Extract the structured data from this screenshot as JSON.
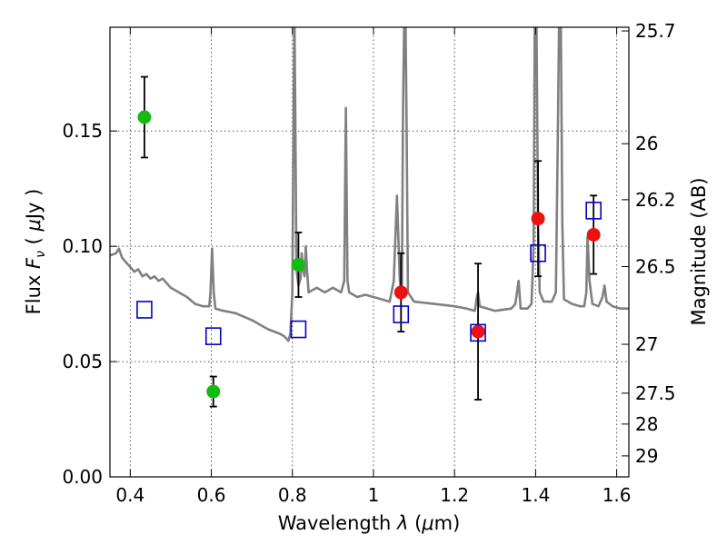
{
  "chart_data": {
    "type": "scatter",
    "title": "",
    "xlabel": "Wavelength  λ (μm)",
    "ylabel": "Flux  F_ν  ( μJy )",
    "ylabel_parts": {
      "pre": "Flux  ",
      "var": "F",
      "sub": "ν",
      "mid": "  ( ",
      "unit_mu": "μ",
      "unit": "Jy )"
    },
    "xlabel_parts": {
      "pre": "Wavelength  ",
      "var": "λ",
      "open": " (",
      "mu": "μ",
      "post": "m)"
    },
    "y2label": "Magnitude (AB)",
    "xlim": [
      0.35,
      1.63
    ],
    "ylim": [
      0.0,
      0.195
    ],
    "x_ticks": [
      0.4,
      0.6,
      0.8,
      1.0,
      1.2,
      1.4,
      1.6
    ],
    "x_tick_labels": [
      "0.4",
      "0.6",
      "0.8",
      "1",
      "1.2",
      "1.4",
      "1.6"
    ],
    "y_ticks": [
      0.0,
      0.05,
      0.1,
      0.15
    ],
    "y_tick_labels": [
      "0.00",
      "0.05",
      "0.10",
      "0.15"
    ],
    "y2_ticks": [
      {
        "label": "25.7",
        "flux": 0.1934
      },
      {
        "label": "26",
        "flux": 0.1445
      },
      {
        "label": "26.2",
        "flux": 0.1202
      },
      {
        "label": "26.5",
        "flux": 0.0912
      },
      {
        "label": "27",
        "flux": 0.0575
      },
      {
        "label": "27.5",
        "flux": 0.0363
      },
      {
        "label": "28",
        "flux": 0.0229
      },
      {
        "label": "29",
        "flux": 0.0091
      }
    ],
    "grid": true,
    "colors": {
      "green": "#11bb11",
      "red": "#ee1111",
      "blue": "#0000cc",
      "model": "#808080",
      "errorbar": "#000000",
      "grid": "#555555"
    },
    "series": [
      {
        "marker": "circle",
        "color": "#11bb11",
        "points": [
          {
            "x": 0.435,
            "y": 0.156,
            "err": 0.0175
          },
          {
            "x": 0.605,
            "y": 0.037,
            "err": 0.0065
          },
          {
            "x": 0.815,
            "y": 0.092,
            "err": 0.014
          }
        ]
      },
      {
        "marker": "circle",
        "color": "#ee1111",
        "points": [
          {
            "x": 1.068,
            "y": 0.08,
            "err": 0.017
          },
          {
            "x": 1.258,
            "y": 0.063,
            "err": 0.0295
          },
          {
            "x": 1.406,
            "y": 0.112,
            "err": 0.025
          },
          {
            "x": 1.543,
            "y": 0.105,
            "err": 0.017
          }
        ]
      },
      {
        "marker": "square",
        "color": "#0000cc",
        "points": [
          {
            "x": 0.435,
            "y": 0.0725
          },
          {
            "x": 0.605,
            "y": 0.061
          },
          {
            "x": 0.815,
            "y": 0.064
          },
          {
            "x": 1.068,
            "y": 0.0705
          },
          {
            "x": 1.258,
            "y": 0.0625
          },
          {
            "x": 1.406,
            "y": 0.097
          },
          {
            "x": 1.543,
            "y": 0.1155
          }
        ]
      }
    ],
    "model_spectrum": [
      [
        0.35,
        0.096
      ],
      [
        0.365,
        0.097
      ],
      [
        0.372,
        0.099
      ],
      [
        0.38,
        0.095
      ],
      [
        0.39,
        0.093
      ],
      [
        0.4,
        0.091
      ],
      [
        0.41,
        0.089
      ],
      [
        0.42,
        0.09
      ],
      [
        0.43,
        0.087
      ],
      [
        0.44,
        0.088
      ],
      [
        0.45,
        0.086
      ],
      [
        0.46,
        0.087
      ],
      [
        0.47,
        0.085
      ],
      [
        0.48,
        0.086
      ],
      [
        0.5,
        0.082
      ],
      [
        0.52,
        0.08
      ],
      [
        0.54,
        0.078
      ],
      [
        0.56,
        0.075
      ],
      [
        0.58,
        0.074
      ],
      [
        0.595,
        0.074
      ],
      [
        0.598,
        0.08
      ],
      [
        0.602,
        0.099
      ],
      [
        0.606,
        0.08
      ],
      [
        0.61,
        0.073
      ],
      [
        0.63,
        0.072
      ],
      [
        0.66,
        0.071
      ],
      [
        0.7,
        0.068
      ],
      [
        0.74,
        0.064
      ],
      [
        0.77,
        0.062
      ],
      [
        0.78,
        0.061
      ],
      [
        0.785,
        0.06
      ],
      [
        0.79,
        0.059
      ],
      [
        0.795,
        0.062
      ],
      [
        0.8,
        0.08
      ],
      [
        0.803,
        0.16
      ],
      [
        0.805,
        0.2
      ],
      [
        0.807,
        0.16
      ],
      [
        0.81,
        0.09
      ],
      [
        0.815,
        0.083
      ],
      [
        0.82,
        0.086
      ],
      [
        0.823,
        0.097
      ],
      [
        0.826,
        0.09
      ],
      [
        0.83,
        0.087
      ],
      [
        0.833,
        0.1
      ],
      [
        0.836,
        0.09
      ],
      [
        0.84,
        0.08
      ],
      [
        0.86,
        0.082
      ],
      [
        0.88,
        0.08
      ],
      [
        0.9,
        0.082
      ],
      [
        0.92,
        0.08
      ],
      [
        0.928,
        0.085
      ],
      [
        0.932,
        0.16
      ],
      [
        0.936,
        0.085
      ],
      [
        0.94,
        0.08
      ],
      [
        0.96,
        0.078
      ],
      [
        0.98,
        0.079
      ],
      [
        1.0,
        0.078
      ],
      [
        1.02,
        0.077
      ],
      [
        1.04,
        0.076
      ],
      [
        1.05,
        0.085
      ],
      [
        1.058,
        0.122
      ],
      [
        1.065,
        0.085
      ],
      [
        1.07,
        0.078
      ],
      [
        1.073,
        0.16
      ],
      [
        1.076,
        0.2
      ],
      [
        1.079,
        0.2
      ],
      [
        1.082,
        0.15
      ],
      [
        1.085,
        0.08
      ],
      [
        1.1,
        0.076
      ],
      [
        1.15,
        0.075
      ],
      [
        1.2,
        0.074
      ],
      [
        1.23,
        0.073
      ],
      [
        1.25,
        0.072
      ],
      [
        1.255,
        0.078
      ],
      [
        1.258,
        0.08
      ],
      [
        1.262,
        0.074
      ],
      [
        1.3,
        0.072
      ],
      [
        1.34,
        0.073
      ],
      [
        1.35,
        0.075
      ],
      [
        1.358,
        0.085
      ],
      [
        1.363,
        0.073
      ],
      [
        1.38,
        0.073
      ],
      [
        1.39,
        0.075
      ],
      [
        1.395,
        0.1
      ],
      [
        1.398,
        0.2
      ],
      [
        1.402,
        0.2
      ],
      [
        1.406,
        0.11
      ],
      [
        1.41,
        0.08
      ],
      [
        1.42,
        0.076
      ],
      [
        1.44,
        0.076
      ],
      [
        1.45,
        0.08
      ],
      [
        1.455,
        0.15
      ],
      [
        1.458,
        0.2
      ],
      [
        1.462,
        0.2
      ],
      [
        1.466,
        0.11
      ],
      [
        1.47,
        0.077
      ],
      [
        1.49,
        0.075
      ],
      [
        1.51,
        0.074
      ],
      [
        1.52,
        0.074
      ],
      [
        1.525,
        0.08
      ],
      [
        1.528,
        0.104
      ],
      [
        1.533,
        0.085
      ],
      [
        1.54,
        0.075
      ],
      [
        1.555,
        0.074
      ],
      [
        1.565,
        0.078
      ],
      [
        1.57,
        0.083
      ],
      [
        1.575,
        0.076
      ],
      [
        1.59,
        0.074
      ],
      [
        1.61,
        0.073
      ],
      [
        1.63,
        0.073
      ]
    ]
  }
}
